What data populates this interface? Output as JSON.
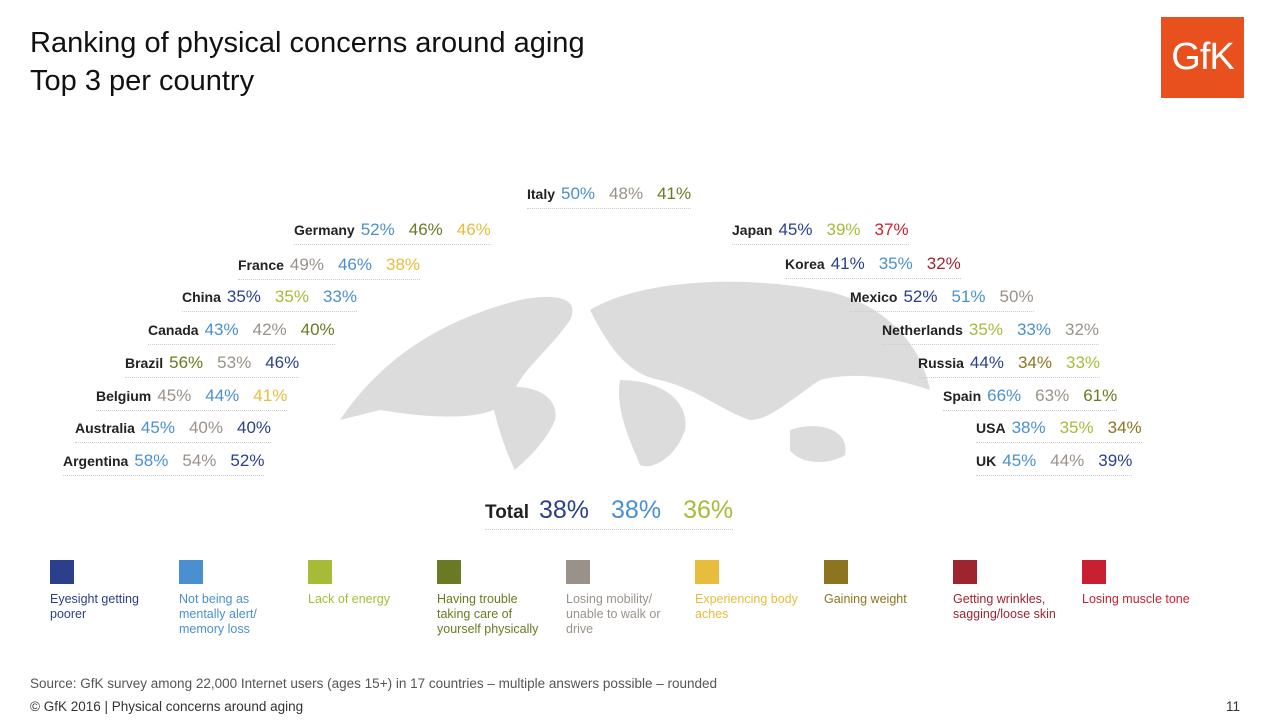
{
  "title": {
    "line1": "Ranking of physical concerns around aging",
    "line2": "Top 3 per country"
  },
  "logo": "GfK",
  "colors": {
    "eyesight": "#2b3f8c",
    "mental": "#4a90d0",
    "energy": "#a8bb38",
    "trouble": "#6a7a22",
    "mobility": "#9a928a",
    "aches": "#e8bc3c",
    "weight": "#8c7420",
    "wrinkles": "#9e2430",
    "muscle": "#c82030"
  },
  "chart_data": {
    "type": "table",
    "title": "Ranking of physical concerns around aging - Top 3 per country",
    "countries": [
      {
        "name": "Italy",
        "values": [
          {
            "v": "50%",
            "c": "mental"
          },
          {
            "v": "48%",
            "c": "mobility"
          },
          {
            "v": "41%",
            "c": "trouble"
          }
        ]
      },
      {
        "name": "Germany",
        "values": [
          {
            "v": "52%",
            "c": "mental"
          },
          {
            "v": "46%",
            "c": "trouble"
          },
          {
            "v": "46%",
            "c": "aches"
          }
        ]
      },
      {
        "name": "France",
        "values": [
          {
            "v": "49%",
            "c": "mobility"
          },
          {
            "v": "46%",
            "c": "mental"
          },
          {
            "v": "38%",
            "c": "aches"
          }
        ]
      },
      {
        "name": "China",
        "values": [
          {
            "v": "35%",
            "c": "eyesight"
          },
          {
            "v": "35%",
            "c": "energy"
          },
          {
            "v": "33%",
            "c": "mental"
          }
        ]
      },
      {
        "name": "Canada",
        "values": [
          {
            "v": "43%",
            "c": "mental"
          },
          {
            "v": "42%",
            "c": "mobility"
          },
          {
            "v": "40%",
            "c": "trouble"
          }
        ]
      },
      {
        "name": "Brazil",
        "values": [
          {
            "v": "56%",
            "c": "trouble"
          },
          {
            "v": "53%",
            "c": "mobility"
          },
          {
            "v": "46%",
            "c": "eyesight"
          }
        ]
      },
      {
        "name": "Belgium",
        "values": [
          {
            "v": "45%",
            "c": "mobility"
          },
          {
            "v": "44%",
            "c": "mental"
          },
          {
            "v": "41%",
            "c": "aches"
          }
        ]
      },
      {
        "name": "Australia",
        "values": [
          {
            "v": "45%",
            "c": "mental"
          },
          {
            "v": "40%",
            "c": "mobility"
          },
          {
            "v": "40%",
            "c": "eyesight"
          }
        ]
      },
      {
        "name": "Argentina",
        "values": [
          {
            "v": "58%",
            "c": "mental"
          },
          {
            "v": "54%",
            "c": "mobility"
          },
          {
            "v": "52%",
            "c": "eyesight"
          }
        ]
      },
      {
        "name": "Japan",
        "values": [
          {
            "v": "45%",
            "c": "eyesight"
          },
          {
            "v": "39%",
            "c": "energy"
          },
          {
            "v": "37%",
            "c": "muscle"
          }
        ]
      },
      {
        "name": "Korea",
        "values": [
          {
            "v": "41%",
            "c": "eyesight"
          },
          {
            "v": "35%",
            "c": "mental"
          },
          {
            "v": "32%",
            "c": "wrinkles"
          }
        ]
      },
      {
        "name": "Mexico",
        "values": [
          {
            "v": "52%",
            "c": "eyesight"
          },
          {
            "v": "51%",
            "c": "mental"
          },
          {
            "v": "50%",
            "c": "mobility"
          }
        ]
      },
      {
        "name": "Netherlands",
        "values": [
          {
            "v": "35%",
            "c": "energy"
          },
          {
            "v": "33%",
            "c": "mental"
          },
          {
            "v": "32%",
            "c": "mobility"
          }
        ]
      },
      {
        "name": "Russia",
        "values": [
          {
            "v": "44%",
            "c": "eyesight"
          },
          {
            "v": "34%",
            "c": "weight"
          },
          {
            "v": "33%",
            "c": "energy"
          }
        ]
      },
      {
        "name": "Spain",
        "values": [
          {
            "v": "66%",
            "c": "mental"
          },
          {
            "v": "63%",
            "c": "mobility"
          },
          {
            "v": "61%",
            "c": "trouble"
          }
        ]
      },
      {
        "name": "USA",
        "values": [
          {
            "v": "38%",
            "c": "mental"
          },
          {
            "v": "35%",
            "c": "energy"
          },
          {
            "v": "34%",
            "c": "weight"
          }
        ]
      },
      {
        "name": "UK",
        "values": [
          {
            "v": "45%",
            "c": "mental"
          },
          {
            "v": "44%",
            "c": "mobility"
          },
          {
            "v": "39%",
            "c": "eyesight"
          }
        ]
      }
    ],
    "total": {
      "name": "Total",
      "values": [
        {
          "v": "38%",
          "c": "eyesight"
        },
        {
          "v": "38%",
          "c": "mental"
        },
        {
          "v": "36%",
          "c": "energy"
        }
      ]
    },
    "legend": [
      {
        "key": "eyesight",
        "label": "Eyesight getting poorer"
      },
      {
        "key": "mental",
        "label": "Not being as mentally alert/ memory loss"
      },
      {
        "key": "energy",
        "label": "Lack of energy"
      },
      {
        "key": "trouble",
        "label": "Having trouble taking care of yourself physically"
      },
      {
        "key": "mobility",
        "label": "Losing mobility/ unable to walk or drive"
      },
      {
        "key": "aches",
        "label": "Experiencing body aches"
      },
      {
        "key": "weight",
        "label": "Gaining weight"
      },
      {
        "key": "wrinkles",
        "label": "Getting wrinkles, sagging/loose skin"
      },
      {
        "key": "muscle",
        "label": "Losing muscle tone"
      }
    ]
  },
  "source": "Source: GfK survey among 22,000 Internet users (ages 15+) in 17 countries – multiple answers possible – rounded",
  "footer": "© GfK 2016 | Physical concerns around aging",
  "page": "11"
}
